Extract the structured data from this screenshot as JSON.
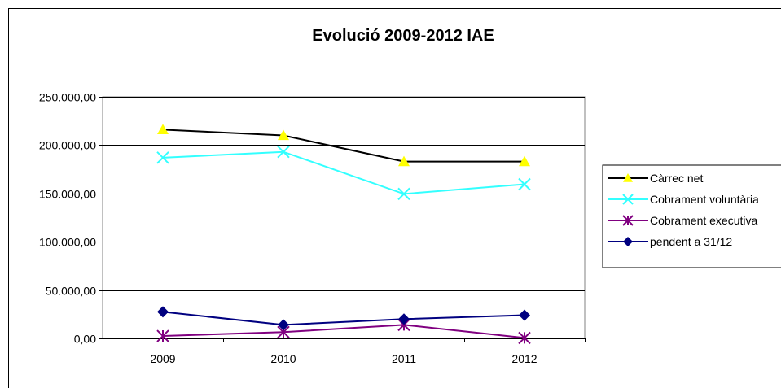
{
  "chart_data": {
    "type": "line",
    "title": "Evolució 2009-2012 IAE",
    "categories": [
      "2009",
      "2010",
      "2011",
      "2012"
    ],
    "ylim": [
      0,
      250000
    ],
    "yticks": [
      0,
      50000,
      100000,
      150000,
      200000,
      250000
    ],
    "ytick_labels": [
      "0,00",
      "50.000,00",
      "100.000,00",
      "150.000,00",
      "200.000,00",
      "250.000,00"
    ],
    "grid": true,
    "legend_position": "right",
    "series": [
      {
        "name": "Càrrec net",
        "values": [
          216000,
          210000,
          183000,
          183000
        ],
        "line_color": "#000000",
        "marker": "triangle",
        "marker_color": "#ffff00"
      },
      {
        "name": "Cobrament voluntària",
        "values": [
          187000,
          193000,
          149500,
          159500
        ],
        "line_color": "#33ffff",
        "marker": "x",
        "marker_color": "#33ffff"
      },
      {
        "name": "Cobrament executiva",
        "values": [
          2500,
          6500,
          14000,
          500
        ],
        "line_color": "#800080",
        "marker": "star",
        "marker_color": "#800080"
      },
      {
        "name": "pendent a 31/12",
        "values": [
          27500,
          14000,
          20000,
          24000
        ],
        "line_color": "#000080",
        "marker": "diamond",
        "marker_color": "#000080"
      }
    ]
  }
}
